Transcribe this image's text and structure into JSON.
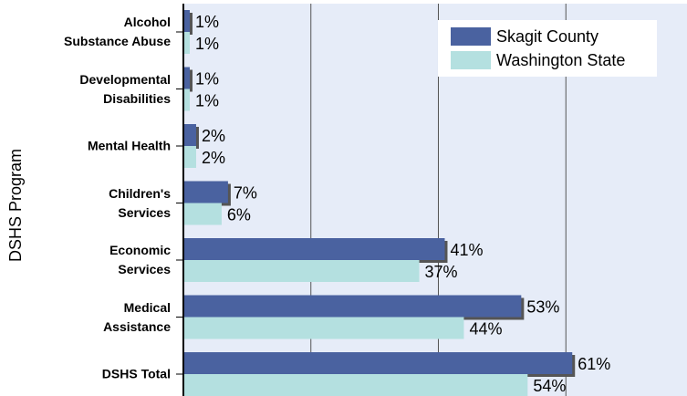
{
  "chart_data": {
    "type": "bar",
    "orientation": "horizontal",
    "y_label": "DSHS Program",
    "categories": [
      "Alcohol\nSubstance Abuse",
      "Developmental\nDisabilities",
      "Mental Health",
      "Children's\nServices",
      "Economic\nServices",
      "Medical\nAssistance",
      "DSHS Total"
    ],
    "series": [
      {
        "name": "Skagit County",
        "color": "#4a62a0",
        "values": [
          1,
          1,
          2,
          7,
          41,
          53,
          61
        ],
        "value_labels": [
          "1%",
          "1%",
          "2%",
          "7%",
          "41%",
          "53%",
          "61%"
        ]
      },
      {
        "name": "Washington State",
        "color": "#b4e0e0",
        "values": [
          1,
          1,
          2,
          6,
          37,
          44,
          54
        ],
        "value_labels": [
          "1%",
          "1%",
          "2%",
          "6%",
          "37%",
          "44%",
          "54%"
        ]
      }
    ],
    "xlim": [
      0,
      79
    ],
    "xticks": [
      20,
      40,
      60
    ],
    "grid": true,
    "legend": "upper right"
  }
}
